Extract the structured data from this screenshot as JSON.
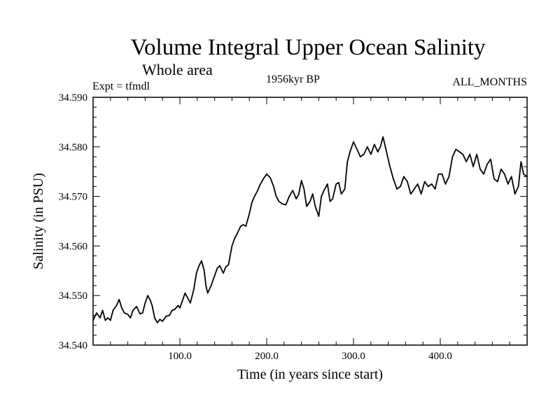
{
  "header": {
    "title": "Volume Integral Upper Ocean Salinity",
    "subtitle": "Whole area",
    "experiment": "Expt = tfmdl",
    "period": "1956kyr BP",
    "months": "ALL_MONTHS"
  },
  "chart_data": {
    "type": "line",
    "title": "Volume Integral Upper Ocean Salinity",
    "subtitle": "Whole area",
    "xlabel": "Time (in years since start)",
    "ylabel": "Salinity (in PSU)",
    "xlim": [
      0,
      500
    ],
    "ylim": [
      34.54,
      34.59
    ],
    "xticks": [
      100,
      200,
      300,
      400
    ],
    "xtick_labels": [
      "100.0",
      "200.0",
      "300.0",
      "400.0"
    ],
    "yticks": [
      34.54,
      34.55,
      34.56,
      34.57,
      34.58,
      34.59
    ],
    "ytick_labels": [
      "34.540",
      "34.550",
      "34.560",
      "34.570",
      "34.580",
      "34.590"
    ],
    "grid": false,
    "series": [
      {
        "name": "Salinity",
        "x": [
          0,
          4,
          8,
          11,
          14,
          17,
          20,
          23,
          27,
          30,
          33,
          36,
          40,
          43,
          46,
          50,
          54,
          57,
          60,
          63,
          66,
          68,
          71,
          74,
          77,
          80,
          84,
          88,
          91,
          94,
          98,
          100,
          103,
          106,
          109,
          112,
          116,
          119,
          122,
          125,
          128,
          130,
          132,
          136,
          140,
          143,
          146,
          150,
          153,
          156,
          160,
          163,
          166,
          170,
          173,
          176,
          180,
          183,
          186,
          189,
          192,
          196,
          200,
          204,
          208,
          211,
          214,
          218,
          222,
          226,
          230,
          234,
          237,
          240,
          243,
          246,
          250,
          253,
          256,
          260,
          263,
          266,
          270,
          273,
          276,
          280,
          283,
          286,
          290,
          293,
          296,
          300,
          304,
          308,
          312,
          316,
          320,
          324,
          328,
          331,
          334,
          338,
          342,
          346,
          350,
          354,
          358,
          362,
          366,
          370,
          374,
          378,
          382,
          386,
          390,
          394,
          398,
          402,
          406,
          410,
          414,
          418,
          422,
          426,
          430,
          434,
          438,
          442,
          446,
          450,
          454,
          458,
          462,
          466,
          470,
          474,
          478,
          482,
          486,
          490,
          493,
          496,
          500
        ],
        "values": [
          34.545,
          34.5465,
          34.5455,
          34.547,
          34.545,
          34.5455,
          34.545,
          34.547,
          34.548,
          34.5492,
          34.5475,
          34.5465,
          34.5462,
          34.5455,
          34.547,
          34.5478,
          34.5463,
          34.5465,
          34.5485,
          34.55,
          34.549,
          34.548,
          34.5455,
          34.5445,
          34.5452,
          34.5448,
          34.5458,
          34.546,
          34.547,
          34.5472,
          34.548,
          34.5475,
          34.549,
          34.5505,
          34.5495,
          34.5485,
          34.5512,
          34.5545,
          34.556,
          34.557,
          34.555,
          34.552,
          34.5505,
          34.552,
          34.554,
          34.5555,
          34.556,
          34.5545,
          34.5558,
          34.5562,
          34.56,
          34.5615,
          34.5625,
          34.564,
          34.5643,
          34.564,
          34.5665,
          34.5688,
          34.57,
          34.571,
          34.5722,
          34.5735,
          34.5745,
          34.5738,
          34.572,
          34.57,
          34.569,
          34.5685,
          34.5683,
          34.57,
          34.5712,
          34.5695,
          34.5705,
          34.5732,
          34.5715,
          34.568,
          34.569,
          34.5705,
          34.568,
          34.566,
          34.57,
          34.5712,
          34.5725,
          34.569,
          34.5695,
          34.5725,
          34.5728,
          34.5705,
          34.5715,
          34.577,
          34.579,
          34.581,
          34.5795,
          34.578,
          34.5785,
          34.58,
          34.5785,
          34.5805,
          34.579,
          34.58,
          34.582,
          34.579,
          34.576,
          34.5735,
          34.5715,
          34.572,
          34.574,
          34.573,
          34.5705,
          34.5715,
          34.5725,
          34.5705,
          34.573,
          34.572,
          34.5725,
          34.5715,
          34.5745,
          34.5745,
          34.5725,
          34.574,
          34.578,
          34.5795,
          34.579,
          34.5785,
          34.577,
          34.5785,
          34.576,
          34.5785,
          34.5755,
          34.5745,
          34.5765,
          34.5775,
          34.5735,
          34.573,
          34.5755,
          34.5745,
          34.5725,
          34.574,
          34.5705,
          34.572,
          34.577,
          34.5745,
          34.574
        ]
      }
    ]
  }
}
